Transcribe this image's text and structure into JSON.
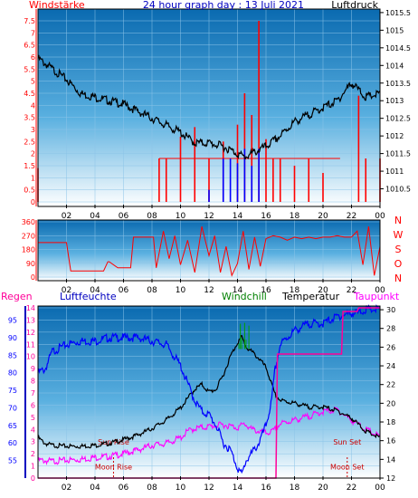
{
  "colors": {
    "background_dark": "#0a6ab0",
    "background_light": "#ffffff",
    "wind_speed": "#ff0000",
    "wind_gust": "#0000ff",
    "pressure": "#000000",
    "wind_direction": "#ff0000",
    "humidity": "#0000ff",
    "temperature": "#000000",
    "dewpoint": "#ff00ff",
    "windchill": "#00a000",
    "rain": "#ff0099",
    "annotation": "#cc0000"
  },
  "chart_data": [
    {
      "type": "bar",
      "title": "24 hour graph day : 13 Juli 2021",
      "left_label": "Windstärke",
      "right_label": "Luftdruck",
      "x_ticks": [
        "02",
        "04",
        "06",
        "08",
        "10",
        "12",
        "14",
        "16",
        "18",
        "20",
        "22",
        "00"
      ],
      "x_range": [
        0,
        24
      ],
      "y_left_ticks": [
        "0",
        "0.5",
        "1",
        "1.5",
        "2",
        "2.5",
        "3",
        "3.5",
        "4",
        "4.5",
        "5",
        "5.5",
        "6",
        "6.5",
        "7",
        "7.5"
      ],
      "y_left_range": [
        0,
        7.5
      ],
      "y_right_ticks": [
        "1010.5",
        "1011",
        "1011.5",
        "1012",
        "1012.5",
        "1013",
        "1013.5",
        "1014",
        "1014.5",
        "1015",
        "1015.5"
      ],
      "y_right_range": [
        1010,
        1015.6
      ],
      "grid": true,
      "series": [
        {
          "name": "Luftdruck",
          "axis": "right",
          "x": [
            0,
            1,
            2,
            3,
            4,
            5,
            6,
            7,
            8,
            9,
            10,
            11,
            12,
            13,
            14,
            14.5,
            15,
            16,
            17,
            18,
            19,
            20,
            21,
            22,
            22.5,
            23,
            24
          ],
          "y": [
            1014.2,
            1013.9,
            1013.6,
            1013.2,
            1013.1,
            1013.0,
            1012.9,
            1012.7,
            1012.5,
            1012.3,
            1012.1,
            1011.8,
            1011.8,
            1011.7,
            1011.5,
            1011.4,
            1011.5,
            1011.7,
            1012.0,
            1012.4,
            1012.6,
            1012.8,
            1013.0,
            1013.5,
            1013.3,
            1013.1,
            1013.2
          ]
        },
        {
          "name": "Windstärke",
          "axis": "left",
          "x": [
            0,
            1,
            2,
            3,
            4,
            5,
            6,
            7,
            8,
            8.5,
            9,
            10,
            11,
            12,
            13,
            14,
            14.5,
            15,
            15.5,
            16,
            16.5,
            17,
            18,
            19,
            20,
            21,
            22,
            22.5,
            23,
            24
          ],
          "y": [
            1.4,
            0,
            0,
            0,
            0,
            0,
            0,
            0,
            0,
            1.8,
            1.8,
            2.7,
            3.1,
            1.8,
            2.5,
            3.2,
            4.5,
            3.6,
            7.5,
            2.6,
            1.8,
            1.8,
            1.5,
            1.8,
            1.2,
            0,
            0,
            4.4,
            1.8,
            1.8
          ]
        },
        {
          "name": "Windböen",
          "axis": "left",
          "x": [
            0,
            10,
            11,
            12,
            13,
            13.5,
            14,
            14.5,
            15,
            15.5,
            16,
            24
          ],
          "y": [
            0,
            0,
            0,
            0.5,
            1.8,
            1.8,
            1.6,
            2.2,
            1.5,
            2.2,
            0,
            0
          ]
        }
      ]
    },
    {
      "type": "line",
      "right_label_letters": [
        "N",
        "W",
        "S",
        "O",
        "N"
      ],
      "y_ticks": [
        "0",
        "90",
        "180",
        "270",
        "360"
      ],
      "y_range": [
        0,
        360
      ],
      "x_ticks": [
        "02",
        "04",
        "06",
        "08",
        "10",
        "12",
        "14",
        "16",
        "18",
        "20",
        "22",
        "00"
      ],
      "x_range": [
        0,
        24
      ],
      "series": [
        {
          "name": "Windrichtung",
          "x": [
            0,
            2,
            2.3,
            2.6,
            4.6,
            4.9,
            5.0,
            5.6,
            6.5,
            6.7,
            7.5,
            8.1,
            8.3,
            8.8,
            9.2,
            9.6,
            10.0,
            10.5,
            11.0,
            11.5,
            12.0,
            12.4,
            12.8,
            13.2,
            13.6,
            14.0,
            14.4,
            14.8,
            15.2,
            15.6,
            16.0,
            16.5,
            17.0,
            17.5,
            18.0,
            18.5,
            19.0,
            19.5,
            20.0,
            20.5,
            21.0,
            21.5,
            22.0,
            22.4,
            22.8,
            23.2,
            23.6,
            24.0
          ],
          "y": [
            225,
            225,
            40,
            40,
            40,
            100,
            100,
            60,
            60,
            260,
            260,
            260,
            60,
            300,
            120,
            270,
            80,
            240,
            30,
            330,
            140,
            270,
            30,
            200,
            10,
            90,
            300,
            50,
            260,
            70,
            250,
            270,
            260,
            240,
            260,
            250,
            260,
            250,
            260,
            260,
            270,
            260,
            260,
            300,
            80,
            330,
            10,
            200
          ]
        }
      ]
    },
    {
      "type": "line",
      "labels": {
        "rain": "Regen",
        "humidity": "Luftfeuchte",
        "windchill": "Windchill",
        "temperature": "Temperatur",
        "dewpoint": "Taupunkt"
      },
      "y_left_ticks": [
        "55",
        "60",
        "65",
        "70",
        "75",
        "80",
        "85",
        "90",
        "95"
      ],
      "y_left_range": [
        50,
        99
      ],
      "y_rain_ticks": [
        "0",
        "1",
        "2",
        "3",
        "4",
        "5",
        "6",
        "7",
        "8",
        "9",
        "10",
        "11",
        "12",
        "13",
        "14"
      ],
      "y_rain_range": [
        0,
        14
      ],
      "y_right_ticks": [
        "12",
        "14",
        "16",
        "18",
        "20",
        "22",
        "24",
        "26",
        "28",
        "30"
      ],
      "y_right_range": [
        12,
        30.2
      ],
      "x_ticks": [
        "02",
        "04",
        "06",
        "08",
        "10",
        "12",
        "14",
        "16",
        "18",
        "20",
        "22",
        "00"
      ],
      "x_range": [
        0,
        24
      ],
      "annotations": [
        {
          "text": "Sun Rise",
          "x": 5.3,
          "y": 59.5
        },
        {
          "text": "Moon Rise",
          "x": 5.3,
          "y": 52.5
        },
        {
          "text": "Sun Set",
          "x": 21.7,
          "y": 59.5
        },
        {
          "text": "Moon Set",
          "x": 21.7,
          "y": 52.5
        }
      ],
      "series": [
        {
          "name": "Luftfeuchte",
          "axis": "left",
          "x": [
            0,
            0.5,
            1,
            2,
            3,
            4,
            5,
            6,
            7,
            8,
            9,
            9.5,
            10,
            10.5,
            11,
            11.5,
            12,
            12.5,
            13,
            13.5,
            14,
            14.3,
            14.6,
            15,
            15.5,
            16,
            16.4,
            16.6,
            17,
            18,
            19,
            20,
            21,
            22,
            22.5,
            23,
            24
          ],
          "y": [
            80,
            81,
            86,
            88,
            89,
            89,
            90,
            90,
            90,
            89,
            88,
            85,
            82,
            77,
            72,
            69,
            68,
            65,
            60,
            58,
            53,
            51,
            55,
            57,
            60,
            65,
            72,
            80,
            88,
            92,
            94,
            94,
            96,
            97,
            97,
            98,
            98
          ]
        },
        {
          "name": "Temperatur",
          "axis": "right",
          "x": [
            0,
            0.5,
            1,
            2,
            3,
            4,
            5,
            6,
            7,
            8,
            9,
            10,
            10.5,
            11,
            11.5,
            12,
            12.5,
            13,
            13.5,
            14,
            14.3,
            14.6,
            15,
            15.5,
            16,
            16.3,
            16.6,
            17,
            18,
            19,
            20,
            21,
            22,
            23,
            24
          ],
          "y": [
            16.3,
            15.7,
            15.5,
            15.4,
            15.4,
            15.5,
            15.7,
            16.1,
            16.6,
            17.3,
            18.2,
            19.5,
            20.5,
            21.5,
            22.0,
            21.2,
            21.5,
            23.0,
            25.0,
            26.5,
            27.1,
            26.0,
            25.5,
            24.8,
            23.8,
            22.5,
            21.0,
            20.3,
            20.0,
            19.6,
            19.6,
            19.2,
            18.4,
            17.0,
            16.3
          ]
        },
        {
          "name": "Taupunkt",
          "axis": "right",
          "x": [
            0,
            1,
            2,
            3,
            4,
            5,
            6,
            7,
            8,
            9,
            10,
            10.5,
            11,
            12,
            13,
            14,
            14.5,
            15,
            16,
            16.5,
            17,
            18,
            19,
            20,
            21,
            22,
            23,
            24
          ],
          "y": [
            13.9,
            13.8,
            13.9,
            14.0,
            14.2,
            14.3,
            14.6,
            15.0,
            15.5,
            15.7,
            16.3,
            17.0,
            17.3,
            17.5,
            17.7,
            17.4,
            17.8,
            17.2,
            16.8,
            17.0,
            17.8,
            18.2,
            18.6,
            19.1,
            19.3,
            18.2,
            17.2,
            16.4
          ]
        },
        {
          "name": "Windchill",
          "axis": "right",
          "x": [
            14.1,
            14.2,
            14.3,
            14.5,
            14.6,
            14.8
          ],
          "y": [
            26.4,
            28.5,
            27.0,
            28.6,
            26.8,
            28.3
          ]
        },
        {
          "name": "Regen",
          "axis": "rain",
          "x": [
            0,
            16.7,
            16.8,
            21.3,
            21.4,
            22.4,
            22.5,
            24
          ],
          "y": [
            0,
            0,
            10.2,
            10.2,
            13.7,
            13.7,
            14.0,
            14.0
          ]
        }
      ]
    }
  ]
}
